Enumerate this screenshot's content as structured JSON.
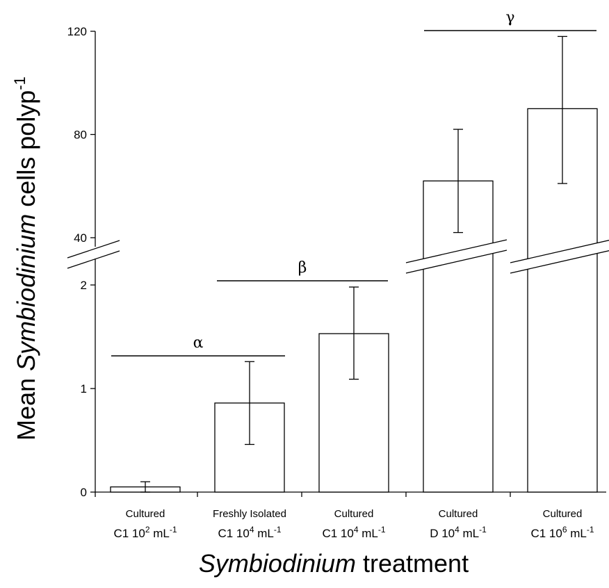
{
  "chart_data": {
    "type": "bar",
    "categories": [
      {
        "line1": "Cultured",
        "line2_pre": "C1 10",
        "exp": "2",
        "line2_post": " mL",
        "unit_exp": "-1"
      },
      {
        "line1": "Freshly Isolated",
        "line2_pre": "C1 10",
        "exp": "4",
        "line2_post": " mL",
        "unit_exp": "-1"
      },
      {
        "line1": "Cultured",
        "line2_pre": "C1 10",
        "exp": "4",
        "line2_post": " mL",
        "unit_exp": "-1"
      },
      {
        "line1": "Cultured",
        "line2_pre": "D 10",
        "exp": "4",
        "line2_post": " mL",
        "unit_exp": "-1"
      },
      {
        "line1": "Cultured",
        "line2_pre": "C1 10",
        "exp": "6",
        "line2_post": " mL",
        "unit_exp": "-1"
      }
    ],
    "values": [
      0.05,
      0.86,
      1.53,
      62,
      90
    ],
    "error_low": [
      0.0,
      0.46,
      1.09,
      42,
      61
    ],
    "error_high": [
      0.1,
      1.26,
      1.98,
      82,
      118
    ],
    "axis_break": true,
    "lower_segment": {
      "ylim": [
        0,
        2
      ],
      "ticks": [
        "0",
        "1",
        "2"
      ]
    },
    "upper_segment": {
      "ylim": [
        40,
        120
      ],
      "ticks": [
        "40",
        "80",
        "120"
      ]
    },
    "significance_groups": [
      {
        "label": "α",
        "from_category": 0,
        "to_category": 1
      },
      {
        "label": "β",
        "from_category": 1,
        "to_category": 2
      },
      {
        "label": "γ",
        "from_category": 3,
        "to_category": 4
      }
    ],
    "xlabel": {
      "italic": "Symbiodinium",
      "rest": " treatment"
    },
    "ylabel": {
      "pre": "Mean ",
      "italic": "Symbiodinium",
      "post": " cells polyp",
      "sup": "-1"
    },
    "grid": false,
    "legend": "none",
    "colors": {
      "bar_fill": "#ffffff",
      "stroke": "#000000"
    }
  }
}
